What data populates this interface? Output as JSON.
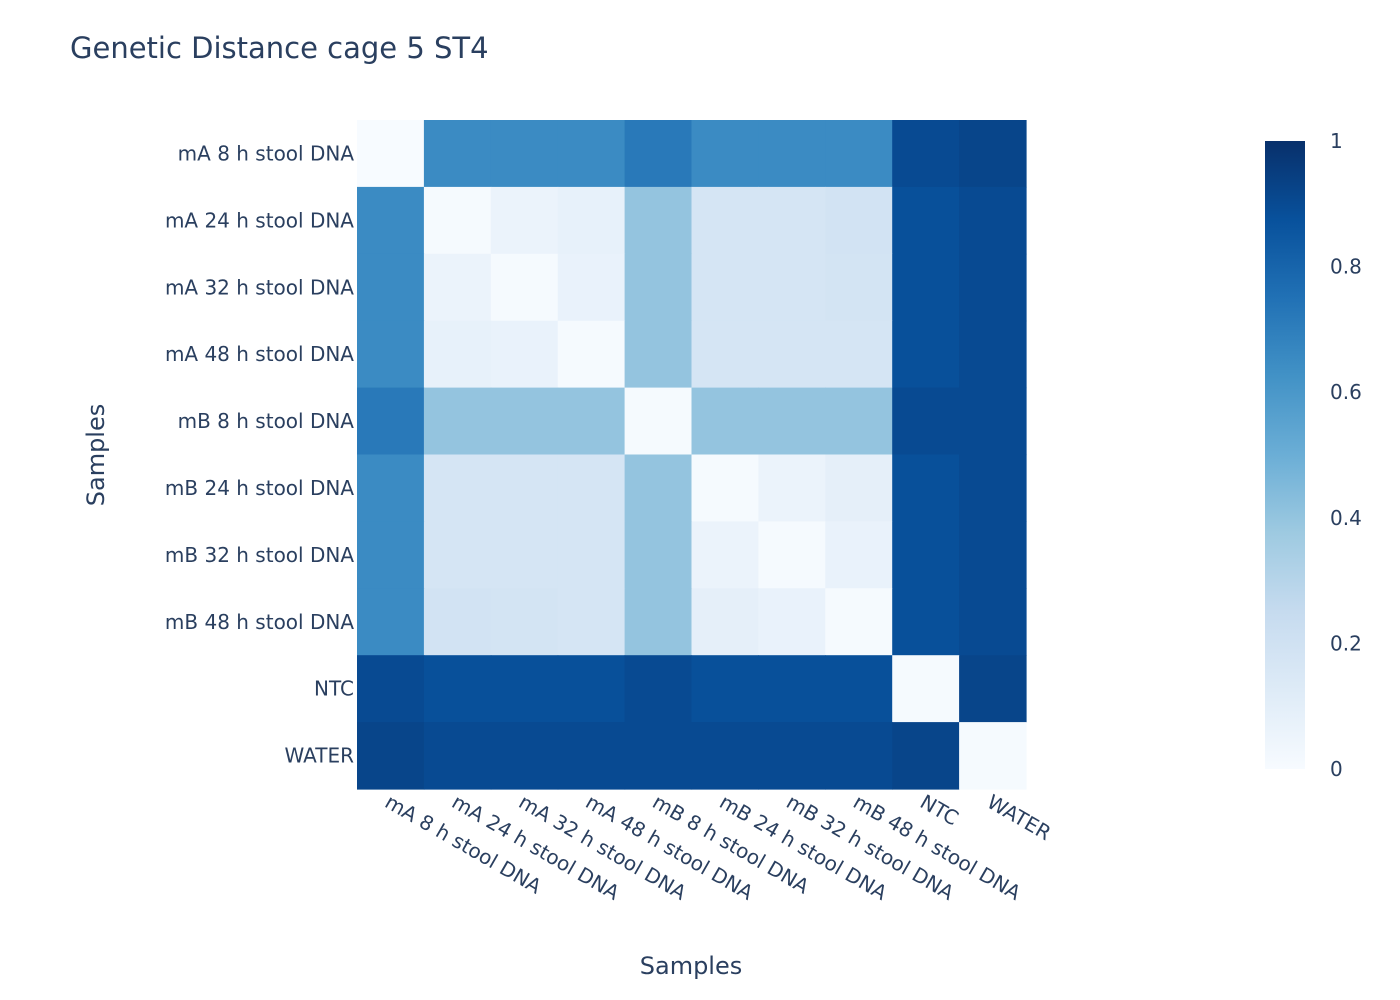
{
  "chart_data": {
    "type": "heatmap",
    "title": "Genetic Distance cage 5 ST4",
    "xlabel": "Samples",
    "ylabel": "Samples",
    "x": [
      "mA 8 h stool DNA",
      "mA 24 h stool DNA",
      "mA 32 h stool DNA",
      "mA 48 h stool DNA",
      "mB 8 h stool DNA",
      "mB 24 h stool DNA",
      "mB 32 h stool DNA",
      "mB 48 h stool DNA",
      "NTC",
      "WATER"
    ],
    "y": [
      "mA 8 h stool DNA",
      "mA 24 h stool DNA",
      "mA 32 h stool DNA",
      "mA 48 h stool DNA",
      "mB 8 h stool DNA",
      "mB 24 h stool DNA",
      "mB 32 h stool DNA",
      "mB 48 h stool DNA",
      "NTC",
      "WATER"
    ],
    "z": [
      [
        0.0,
        0.65,
        0.65,
        0.65,
        0.72,
        0.65,
        0.65,
        0.65,
        0.9,
        0.92
      ],
      [
        0.65,
        0.01,
        0.06,
        0.08,
        0.4,
        0.17,
        0.17,
        0.19,
        0.88,
        0.9
      ],
      [
        0.65,
        0.06,
        0.01,
        0.07,
        0.4,
        0.17,
        0.17,
        0.18,
        0.88,
        0.9
      ],
      [
        0.65,
        0.08,
        0.07,
        0.01,
        0.4,
        0.17,
        0.17,
        0.17,
        0.88,
        0.9
      ],
      [
        0.72,
        0.4,
        0.4,
        0.4,
        0.01,
        0.4,
        0.4,
        0.4,
        0.9,
        0.9
      ],
      [
        0.65,
        0.17,
        0.17,
        0.17,
        0.4,
        0.01,
        0.06,
        0.09,
        0.88,
        0.9
      ],
      [
        0.65,
        0.17,
        0.17,
        0.17,
        0.4,
        0.06,
        0.01,
        0.07,
        0.88,
        0.9
      ],
      [
        0.65,
        0.19,
        0.18,
        0.17,
        0.4,
        0.09,
        0.07,
        0.01,
        0.88,
        0.9
      ],
      [
        0.9,
        0.88,
        0.88,
        0.88,
        0.9,
        0.88,
        0.88,
        0.88,
        0.01,
        0.92
      ],
      [
        0.92,
        0.9,
        0.9,
        0.9,
        0.9,
        0.9,
        0.9,
        0.9,
        0.92,
        0.01
      ]
    ],
    "zmin": 0,
    "zmax": 1,
    "colorscale_name": "Blues",
    "colorscale": [
      [
        0,
        "#f7fbff"
      ],
      [
        0.125,
        "#deebf7"
      ],
      [
        0.25,
        "#c6dbef"
      ],
      [
        0.375,
        "#9ecae1"
      ],
      [
        0.5,
        "#6baed6"
      ],
      [
        0.625,
        "#4292c6"
      ],
      [
        0.75,
        "#2171b5"
      ],
      [
        0.875,
        "#08519c"
      ],
      [
        1,
        "#08306b"
      ]
    ],
    "colorbar_ticks": [
      0,
      0.2,
      0.4,
      0.6,
      0.8,
      1
    ],
    "colorbar_ticklabels": [
      "0",
      "0.2",
      "0.4",
      "0.6",
      "0.8",
      "1"
    ]
  }
}
